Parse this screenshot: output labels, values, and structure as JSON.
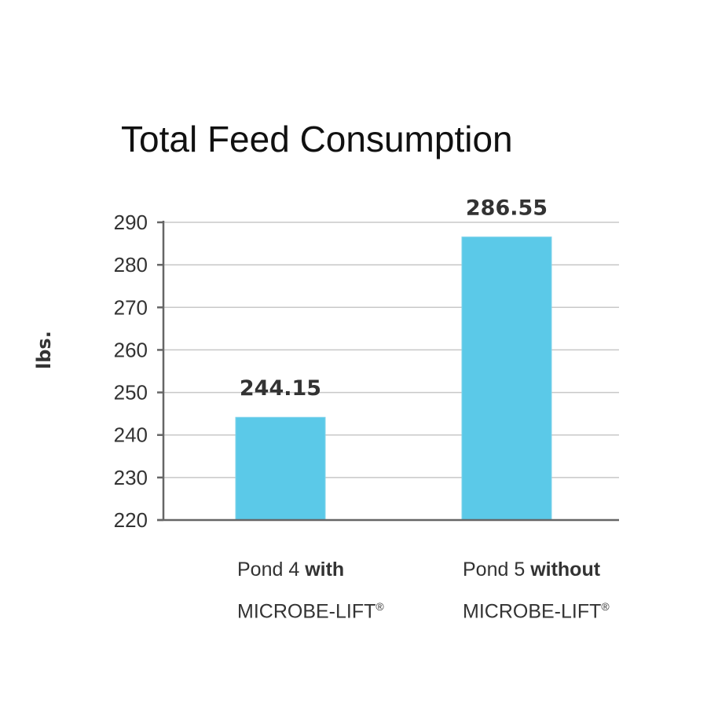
{
  "chart_data": {
    "type": "bar",
    "title": "Total Feed Consumption",
    "xlabel": "",
    "ylabel": "lbs.",
    "ylim": [
      220,
      290
    ],
    "yticks": [
      220,
      230,
      240,
      250,
      260,
      270,
      280,
      290
    ],
    "ytick_labels": [
      "220",
      "230",
      "240",
      "250",
      "260",
      "270",
      "280",
      "290"
    ],
    "grid": true,
    "categories": [
      {
        "line1_prefix": "Pond 4 ",
        "line1_bold": "with",
        "line2": "MICROBE-LIFT",
        "mark": "®"
      },
      {
        "line1_prefix": "Pond 5 ",
        "line1_bold": "without",
        "line2": "MICROBE-LIFT",
        "mark": "®"
      }
    ],
    "values": [
      244.15,
      286.55
    ],
    "data_labels": [
      "244.15",
      "286.55"
    ],
    "bar_color": "#5bc9e8",
    "grid_color": "#c8c8c8",
    "axis_color": "#666666"
  }
}
